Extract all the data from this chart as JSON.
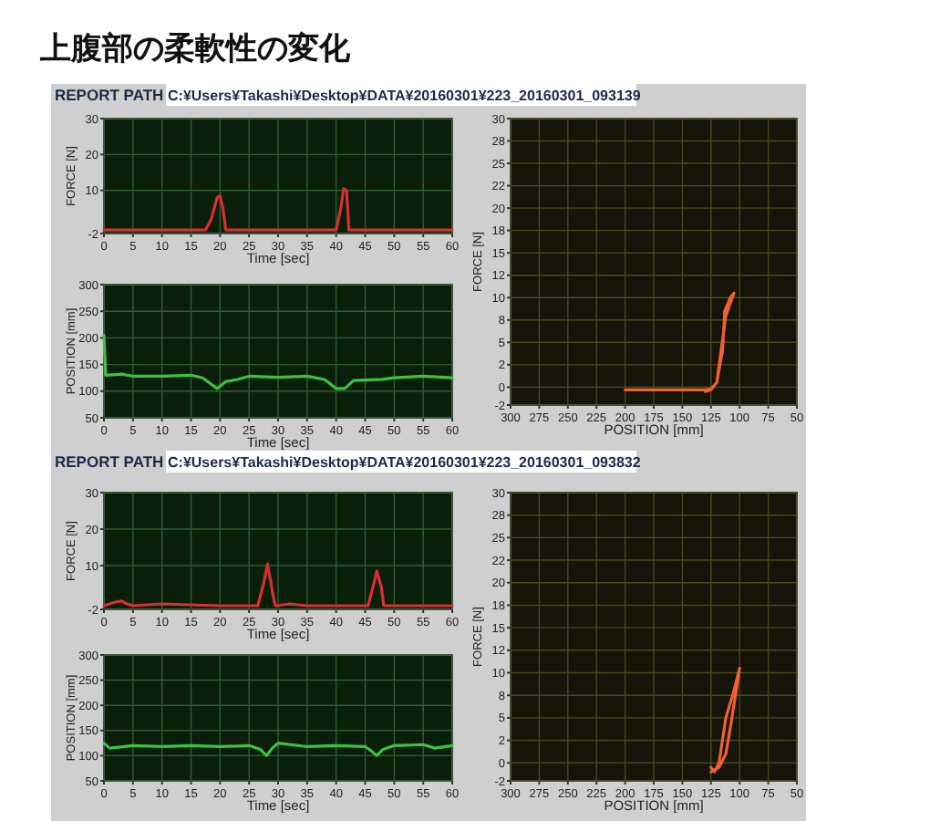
{
  "chart_data": [
    {
      "type": "line",
      "title": "上腹部の柔軟性の変化",
      "annotations": [
        "REPORT PATH",
        "C:¥Users¥Takashi¥Desktop¥DATA¥20160301¥223_20160301_093139"
      ],
      "xlabel": "Time [sec]",
      "ylabel": "FORCE [N]",
      "xlim": [
        0,
        60
      ],
      "ylim": [
        -2,
        30
      ],
      "xticks": [
        0,
        5,
        10,
        15,
        20,
        25,
        30,
        35,
        40,
        45,
        50,
        55,
        60
      ],
      "yticks": [
        -2,
        10,
        20,
        30
      ],
      "grid": true,
      "x": [
        0,
        10,
        17.5,
        18.5,
        19.5,
        20,
        20.5,
        21,
        30,
        40,
        40.8,
        41.3,
        41.8,
        42.2,
        50,
        60
      ],
      "series": [
        {
          "color": "#d83030",
          "values": [
            -1,
            -1,
            -1,
            2,
            8,
            8.5,
            5,
            -1,
            -1,
            -1,
            5,
            10.5,
            10,
            -1,
            -1,
            -1
          ]
        }
      ]
    },
    {
      "type": "line",
      "xlabel": "Time [sec]",
      "ylabel": "POSITION [mm]",
      "xlim": [
        0,
        60
      ],
      "ylim": [
        50,
        300
      ],
      "xticks": [
        0,
        5,
        10,
        15,
        20,
        25,
        30,
        35,
        40,
        45,
        50,
        55,
        60
      ],
      "yticks": [
        50,
        100,
        150,
        200,
        250,
        300
      ],
      "grid": true,
      "x": [
        0,
        0.3,
        3,
        5,
        10,
        15,
        17,
        19.5,
        21,
        23,
        25,
        30,
        35,
        38,
        40,
        41.5,
        43,
        48,
        50,
        55,
        60
      ],
      "series": [
        {
          "color": "#40c040",
          "values": [
            205,
            130,
            132,
            128,
            128,
            130,
            125,
            105,
            118,
            122,
            128,
            126,
            128,
            122,
            105,
            105,
            120,
            122,
            125,
            128,
            125
          ]
        }
      ]
    },
    {
      "type": "line",
      "xlabel": "POSITION [mm]",
      "ylabel": "FORCE [N]",
      "xlim": [
        300,
        50
      ],
      "ylim": [
        -2,
        30
      ],
      "xticks": [
        300,
        275,
        250,
        225,
        200,
        175,
        150,
        125,
        100,
        75,
        50
      ],
      "yticks": [
        -2,
        0,
        {
          "value": 2.5,
          "label": "2"
        },
        5,
        {
          "value": 7.5,
          "label": "8"
        },
        10,
        {
          "value": 12.5,
          "label": "12"
        },
        15,
        {
          "value": 17.5,
          "label": "18"
        },
        20,
        {
          "value": 22.5,
          "label": "22"
        },
        25,
        {
          "value": 27.5,
          "label": "28"
        },
        30
      ],
      "grid": true,
      "x": [
        200,
        130,
        125,
        120,
        112,
        105,
        108,
        113,
        115,
        120,
        125,
        130
      ],
      "series": [
        {
          "color": "#f06030",
          "values": [
            -0.3,
            -0.3,
            -0.2,
            0.5,
            8,
            10.5,
            10,
            8.5,
            4,
            0.5,
            -0.3,
            -0.5
          ]
        }
      ]
    },
    {
      "type": "line",
      "annotations": [
        "REPORT PATH",
        "C:¥Users¥Takashi¥Desktop¥DATA¥20160301¥223_20160301_093832"
      ],
      "xlabel": "Time [sec]",
      "ylabel": "FORCE [N]",
      "xlim": [
        0,
        60
      ],
      "ylim": [
        -2,
        30
      ],
      "xticks": [
        0,
        5,
        10,
        15,
        20,
        25,
        30,
        35,
        40,
        45,
        50,
        55,
        60
      ],
      "yticks": [
        -2,
        10,
        20,
        30
      ],
      "grid": true,
      "x": [
        0,
        2,
        3,
        4,
        5,
        10,
        20,
        26.5,
        27.5,
        28.2,
        29,
        29.5,
        32,
        35,
        45.5,
        46.5,
        47,
        47.8,
        48.2,
        60
      ],
      "series": [
        {
          "color": "#d83030",
          "values": [
            -1,
            0,
            0.3,
            -0.5,
            -1,
            -0.5,
            -1,
            -1,
            5,
            10.5,
            3,
            -1,
            -0.5,
            -1,
            -1,
            5,
            8.5,
            4,
            -1,
            -1
          ]
        }
      ]
    },
    {
      "type": "line",
      "xlabel": "Time [sec]",
      "ylabel": "POSITION [mm]",
      "xlim": [
        0,
        60
      ],
      "ylim": [
        50,
        300
      ],
      "xticks": [
        0,
        5,
        10,
        15,
        20,
        25,
        30,
        35,
        40,
        45,
        50,
        55,
        60
      ],
      "yticks": [
        50,
        100,
        150,
        200,
        250,
        300
      ],
      "grid": true,
      "x": [
        0,
        1,
        5,
        10,
        15,
        20,
        25,
        27,
        28,
        29,
        30,
        35,
        40,
        45,
        46,
        47,
        48,
        50,
        55,
        57,
        60
      ],
      "series": [
        {
          "color": "#40c040",
          "values": [
            125,
            115,
            120,
            118,
            120,
            118,
            120,
            112,
            100,
            115,
            125,
            118,
            120,
            118,
            110,
            100,
            112,
            120,
            122,
            115,
            120
          ]
        }
      ]
    },
    {
      "type": "line",
      "xlabel": "POSITION [mm]",
      "ylabel": "FORCE [N]",
      "xlim": [
        300,
        50
      ],
      "ylim": [
        -2,
        30
      ],
      "xticks": [
        300,
        275,
        250,
        225,
        200,
        175,
        150,
        125,
        100,
        75,
        50
      ],
      "yticks": [
        -2,
        0,
        {
          "value": 2.5,
          "label": "2"
        },
        5,
        {
          "value": 7.5,
          "label": "8"
        },
        10,
        {
          "value": 12.5,
          "label": "12"
        },
        15,
        {
          "value": 17.5,
          "label": "18"
        },
        20,
        {
          "value": 22.5,
          "label": "22"
        },
        25,
        {
          "value": 27.5,
          "label": "28"
        },
        30
      ],
      "grid": true,
      "x": [
        125,
        122,
        118,
        112,
        105,
        100,
        103,
        108,
        112,
        118,
        125
      ],
      "series": [
        {
          "color": "#f06030",
          "values": [
            -0.5,
            -1,
            0,
            5,
            8,
            10.5,
            8,
            4,
            1,
            -0.5,
            -1
          ]
        }
      ]
    }
  ]
}
